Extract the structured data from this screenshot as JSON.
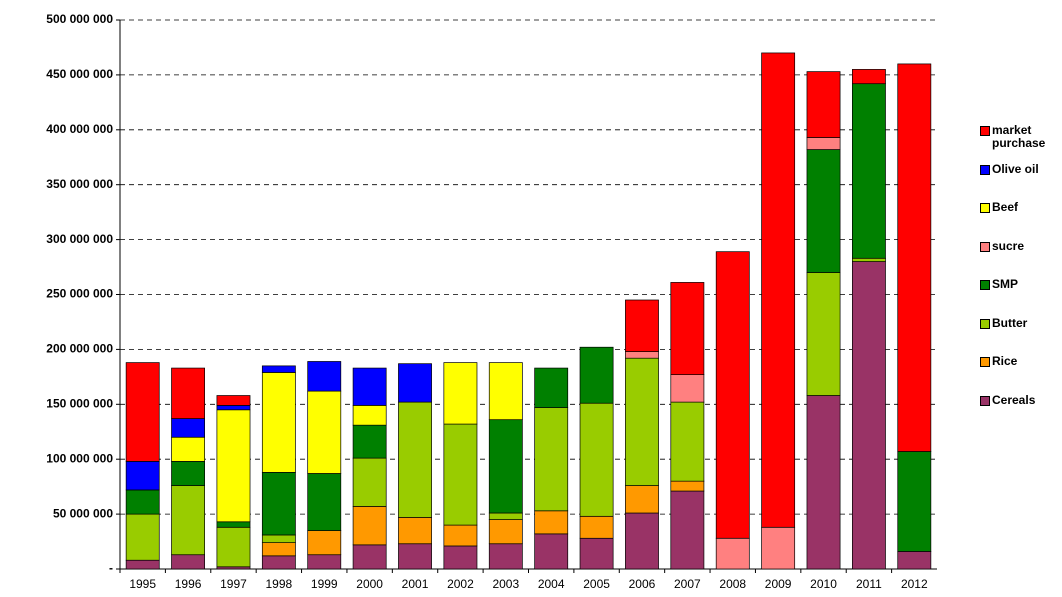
{
  "chart_data": {
    "type": "bar",
    "stacked": true,
    "grid": true,
    "legend": "right",
    "categories": [
      "1995",
      "1996",
      "1997",
      "1998",
      "1999",
      "2000",
      "2001",
      "2002",
      "2003",
      "2004",
      "2005",
      "2006",
      "2007",
      "2008",
      "2009",
      "2010",
      "2011",
      "2012"
    ],
    "ylim": [
      0,
      500000000
    ],
    "yticks": [
      {
        "value": 0,
        "label": "-"
      },
      {
        "value": 50000000,
        "label": "50 000 000"
      },
      {
        "value": 100000000,
        "label": "100 000 000"
      },
      {
        "value": 150000000,
        "label": "150 000 000"
      },
      {
        "value": 200000000,
        "label": "200 000 000"
      },
      {
        "value": 250000000,
        "label": "250 000 000"
      },
      {
        "value": 300000000,
        "label": "300 000 000"
      },
      {
        "value": 350000000,
        "label": "350 000 000"
      },
      {
        "value": 400000000,
        "label": "400 000 000"
      },
      {
        "value": 450000000,
        "label": "450 000 000"
      },
      {
        "value": 500000000,
        "label": "500 000 000"
      }
    ],
    "series": [
      {
        "name": "Cereals",
        "color": "#993366",
        "values": [
          8000000,
          13000000,
          2000000,
          12000000,
          13000000,
          22000000,
          23000000,
          21000000,
          23000000,
          32000000,
          28000000,
          51000000,
          71000000,
          0,
          0,
          158000000,
          280000000,
          16000000
        ]
      },
      {
        "name": "Rice",
        "color": "#ff9900",
        "values": [
          0,
          0,
          0,
          12000000,
          22000000,
          35000000,
          24000000,
          19000000,
          22000000,
          21000000,
          20000000,
          25000000,
          9000000,
          0,
          0,
          0,
          0,
          0
        ]
      },
      {
        "name": "Butter",
        "color": "#99cc00",
        "values": [
          42000000,
          63000000,
          36000000,
          7000000,
          0,
          44000000,
          105000000,
          92000000,
          6000000,
          94000000,
          103000000,
          116000000,
          72000000,
          0,
          0,
          112000000,
          3000000,
          0
        ]
      },
      {
        "name": "SMP",
        "color": "#008000",
        "values": [
          22000000,
          22000000,
          5000000,
          57000000,
          52000000,
          30000000,
          0,
          0,
          85000000,
          36000000,
          51000000,
          0,
          0,
          0,
          0,
          112000000,
          159000000,
          91000000
        ]
      },
      {
        "name": "sucre",
        "color": "#ff8080",
        "values": [
          0,
          0,
          0,
          0,
          0,
          0,
          0,
          0,
          0,
          0,
          0,
          6000000,
          25000000,
          28000000,
          38000000,
          11000000,
          0,
          0
        ]
      },
      {
        "name": "Beef",
        "color": "#ffff00",
        "values": [
          0,
          22000000,
          102000000,
          91000000,
          75000000,
          18000000,
          0,
          56000000,
          52000000,
          0,
          0,
          0,
          0,
          0,
          0,
          0,
          0,
          0
        ]
      },
      {
        "name": "Olive oil",
        "color": "#0000ff",
        "values": [
          26000000,
          17000000,
          4000000,
          6000000,
          27000000,
          34000000,
          35000000,
          0,
          0,
          0,
          0,
          0,
          0,
          0,
          0,
          0,
          0,
          0
        ]
      },
      {
        "name": "market purchase",
        "color": "#ff0000",
        "values": [
          90000000,
          46000000,
          9000000,
          0,
          0,
          0,
          0,
          0,
          0,
          0,
          0,
          47000000,
          84000000,
          261000000,
          432000000,
          60000000,
          13000000,
          353000000
        ]
      }
    ]
  }
}
